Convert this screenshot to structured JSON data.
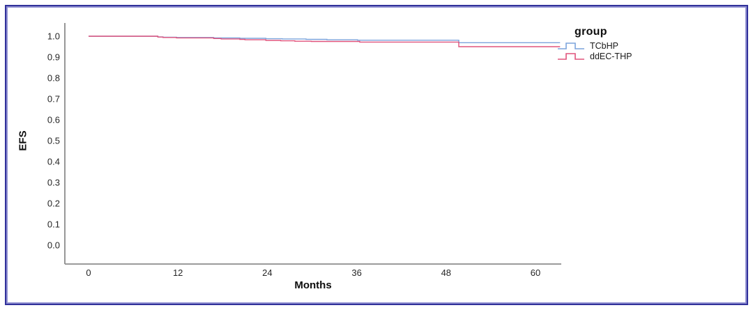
{
  "frame": {
    "outer_border_color": "#32329b",
    "inner_border_color": "#8f8fd0",
    "background": "#ffffff"
  },
  "chart_data": {
    "type": "line",
    "subtype": "kaplan-meier-step",
    "title": "",
    "xlabel": "Months",
    "ylabel": "EFS",
    "axis_color": "#8c8c8c",
    "tick_label_color": "#262626",
    "x_ticks": [
      0,
      12,
      24,
      36,
      48,
      60
    ],
    "y_ticks": [
      "1.0",
      "0.9",
      "0.8",
      "0.7",
      "0.6",
      "0.5",
      "0.4",
      "0.3",
      "0.2",
      "0.1",
      "0.0"
    ],
    "xlim": [
      -3.2,
      63.5
    ],
    "ylim": [
      0.0,
      1.05
    ],
    "grid": false,
    "x_end": 63.3,
    "legend": {
      "title": "group",
      "position": "top-right"
    },
    "series": [
      {
        "name": "TCbHP",
        "color": "#7ca3dc",
        "steps": [
          [
            0,
            1.0
          ],
          [
            9.3,
            0.997
          ],
          [
            10.0,
            0.995
          ],
          [
            11.8,
            0.994
          ],
          [
            16.8,
            0.992
          ],
          [
            20.3,
            0.99
          ],
          [
            23.8,
            0.988
          ],
          [
            26.0,
            0.987
          ],
          [
            29.2,
            0.985
          ],
          [
            32.0,
            0.983
          ],
          [
            36.1,
            0.981
          ],
          [
            49.7,
            0.969
          ],
          [
            63.3,
            0.969
          ]
        ]
      },
      {
        "name": "ddEC-THP",
        "color": "#e0537c",
        "steps": [
          [
            0,
            1.0
          ],
          [
            9.3,
            0.996
          ],
          [
            10.0,
            0.994
          ],
          [
            11.8,
            0.992
          ],
          [
            16.8,
            0.989
          ],
          [
            17.8,
            0.987
          ],
          [
            20.3,
            0.985
          ],
          [
            21.0,
            0.983
          ],
          [
            23.8,
            0.98
          ],
          [
            25.8,
            0.978
          ],
          [
            27.7,
            0.976
          ],
          [
            29.9,
            0.975
          ],
          [
            36.4,
            0.972
          ],
          [
            49.7,
            0.95
          ],
          [
            63.3,
            0.95
          ]
        ]
      }
    ]
  }
}
